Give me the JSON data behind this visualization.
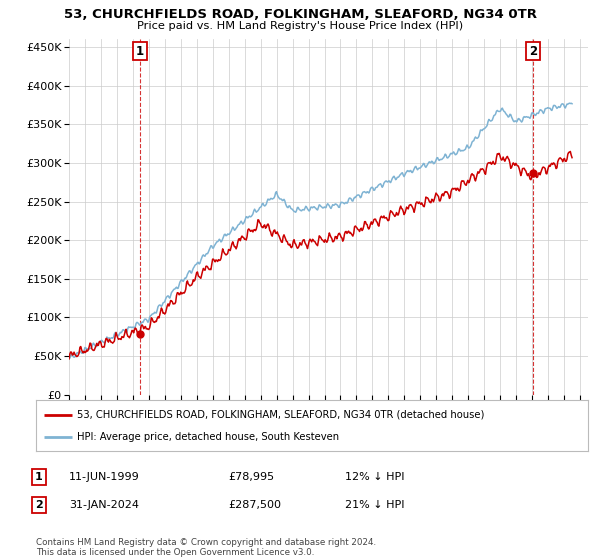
{
  "title": "53, CHURCHFIELDS ROAD, FOLKINGHAM, SLEAFORD, NG34 0TR",
  "subtitle": "Price paid vs. HM Land Registry's House Price Index (HPI)",
  "ytick_values": [
    0,
    50000,
    100000,
    150000,
    200000,
    250000,
    300000,
    350000,
    400000,
    450000
  ],
  "ylim": [
    0,
    460000
  ],
  "xlim_start": 1995.0,
  "xlim_end": 2027.5,
  "transaction1": {
    "date_num": 1999.44,
    "price": 78995,
    "label": "1"
  },
  "transaction2": {
    "date_num": 2024.08,
    "price": 287500,
    "label": "2"
  },
  "legend_line1": "53, CHURCHFIELDS ROAD, FOLKINGHAM, SLEAFORD, NG34 0TR (detached house)",
  "legend_line2": "HPI: Average price, detached house, South Kesteven",
  "annotation1_date": "11-JUN-1999",
  "annotation1_price": "£78,995",
  "annotation1_hpi": "12% ↓ HPI",
  "annotation2_date": "31-JAN-2024",
  "annotation2_price": "£287,500",
  "annotation2_hpi": "21% ↓ HPI",
  "footer": "Contains HM Land Registry data © Crown copyright and database right 2024.\nThis data is licensed under the Open Government Licence v3.0.",
  "line_color_red": "#cc0000",
  "line_color_blue": "#7fb3d3",
  "bg_color": "#ffffff",
  "grid_color": "#cccccc",
  "x_ticks": [
    1995,
    1996,
    1997,
    1998,
    1999,
    2000,
    2001,
    2002,
    2003,
    2004,
    2005,
    2006,
    2007,
    2008,
    2009,
    2010,
    2011,
    2012,
    2013,
    2014,
    2015,
    2016,
    2017,
    2018,
    2019,
    2020,
    2021,
    2022,
    2023,
    2024,
    2025,
    2026,
    2027
  ]
}
